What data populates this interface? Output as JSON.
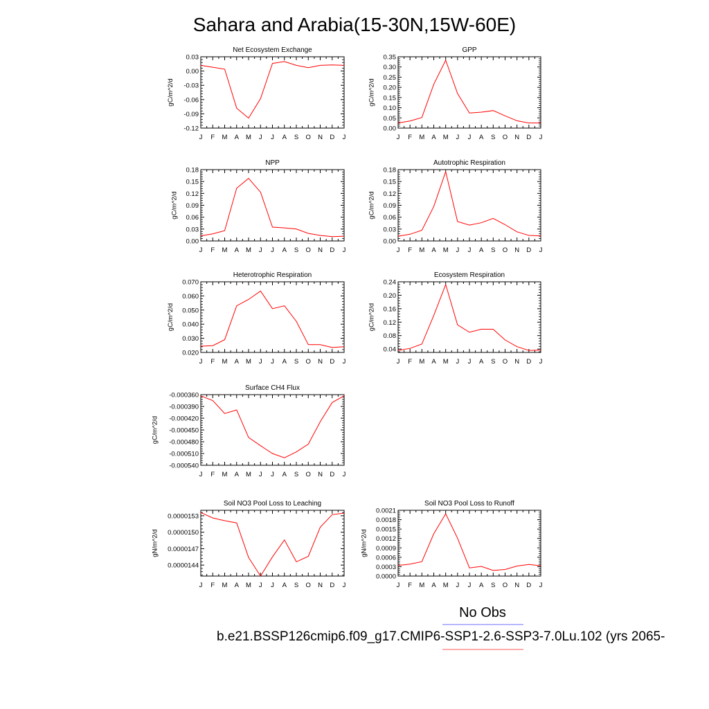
{
  "figure": {
    "title": "Sahara and Arabia(15-30N,15W-60E)",
    "legend": {
      "obs_label": "No Obs",
      "obs_color": "#8c8cff",
      "case_label": "b.e21.BSSP126cmip6.f09_g17.CMIP6-SSP1-2.6-SSP3-7.0Lu.102 (yrs 2065-",
      "case_color": "#ff7a7a"
    },
    "series_color": "#ff0000"
  },
  "chart_data": [
    {
      "type": "line",
      "title": "Net Ecosystem Exchange",
      "ylabel": "gC/m^2/d",
      "x": [
        "J",
        "F",
        "M",
        "A",
        "M",
        "J",
        "J",
        "A",
        "S",
        "O",
        "N",
        "D",
        "J"
      ],
      "ylim": [
        -0.12,
        0.03
      ],
      "yticks": [
        "0.03",
        "0.00",
        "-0.03",
        "-0.06",
        "-0.09",
        "-0.12"
      ],
      "series": [
        {
          "values": [
            0.012,
            0.008,
            0.004,
            -0.078,
            -0.099,
            -0.058,
            0.016,
            0.02,
            0.012,
            0.007,
            0.012,
            0.013,
            0.012
          ]
        }
      ]
    },
    {
      "type": "line",
      "title": "GPP",
      "ylabel": "gC/m^2/d",
      "x": [
        "J",
        "F",
        "M",
        "A",
        "M",
        "J",
        "J",
        "A",
        "S",
        "O",
        "N",
        "D",
        "J"
      ],
      "ylim": [
        0.0,
        0.35
      ],
      "yticks": [
        "0.35",
        "0.30",
        "0.25",
        "0.20",
        "0.15",
        "0.10",
        "0.05",
        "0.00"
      ],
      "series": [
        {
          "values": [
            0.025,
            0.035,
            0.052,
            0.215,
            0.333,
            0.17,
            0.074,
            0.078,
            0.086,
            0.06,
            0.036,
            0.025,
            0.025
          ]
        }
      ]
    },
    {
      "type": "line",
      "title": "NPP",
      "ylabel": "gC/m^2/d",
      "x": [
        "J",
        "F",
        "M",
        "A",
        "M",
        "J",
        "J",
        "A",
        "S",
        "O",
        "N",
        "D",
        "J"
      ],
      "ylim": [
        0.0,
        0.18
      ],
      "yticks": [
        "0.18",
        "0.15",
        "0.12",
        "0.09",
        "0.06",
        "0.03",
        "0.00"
      ],
      "series": [
        {
          "values": [
            0.013,
            0.018,
            0.026,
            0.133,
            0.158,
            0.123,
            0.035,
            0.033,
            0.03,
            0.019,
            0.014,
            0.011,
            0.012
          ]
        }
      ]
    },
    {
      "type": "line",
      "title": "Autotrophic Respiration",
      "ylabel": "gC/m^2/d",
      "x": [
        "J",
        "F",
        "M",
        "A",
        "M",
        "J",
        "J",
        "A",
        "S",
        "O",
        "N",
        "D",
        "J"
      ],
      "ylim": [
        0.0,
        0.18
      ],
      "yticks": [
        "0.18",
        "0.15",
        "0.12",
        "0.09",
        "0.06",
        "0.03",
        "0.00"
      ],
      "series": [
        {
          "values": [
            0.012,
            0.017,
            0.027,
            0.087,
            0.175,
            0.049,
            0.04,
            0.046,
            0.057,
            0.041,
            0.023,
            0.014,
            0.013
          ]
        }
      ]
    },
    {
      "type": "line",
      "title": "Heterotrophic Respiration",
      "ylabel": "gC/m^2/d",
      "x": [
        "J",
        "F",
        "M",
        "A",
        "M",
        "J",
        "J",
        "A",
        "S",
        "O",
        "N",
        "D",
        "J"
      ],
      "ylim": [
        0.02,
        0.07
      ],
      "yticks": [
        "0.070",
        "0.060",
        "0.050",
        "0.040",
        "0.030",
        "0.020"
      ],
      "series": [
        {
          "values": [
            0.0244,
            0.0248,
            0.029,
            0.053,
            0.0575,
            0.0635,
            0.051,
            0.053,
            0.042,
            0.0255,
            0.0255,
            0.0235,
            0.024
          ]
        }
      ]
    },
    {
      "type": "line",
      "title": "Ecosystem Respiration",
      "ylabel": "gC/m^2/d",
      "x": [
        "J",
        "F",
        "M",
        "A",
        "M",
        "J",
        "J",
        "A",
        "S",
        "O",
        "N",
        "D",
        "J"
      ],
      "ylim": [
        0.03,
        0.24
      ],
      "yticks": [
        "0.24",
        "0.20",
        "0.16",
        "0.12",
        "0.08",
        "0.04"
      ],
      "series": [
        {
          "values": [
            0.036,
            0.042,
            0.055,
            0.14,
            0.232,
            0.112,
            0.09,
            0.099,
            0.099,
            0.067,
            0.047,
            0.036,
            0.037
          ]
        }
      ]
    },
    {
      "type": "line",
      "title": "Surface CH4 Flux",
      "ylabel": "gC/m^2/d",
      "x": [
        "J",
        "F",
        "M",
        "A",
        "M",
        "J",
        "J",
        "A",
        "S",
        "O",
        "N",
        "D",
        "J"
      ],
      "ylim": [
        -0.00054,
        -0.00036
      ],
      "yticks": [
        "-0.000360",
        "-0.000390",
        "-0.000420",
        "-0.000450",
        "-0.000480",
        "-0.000510",
        "-0.000540"
      ],
      "series": [
        {
          "values": [
            -0.000363,
            -0.000375,
            -0.000408,
            -0.000399,
            -0.000469,
            -0.00049,
            -0.00051,
            -0.000521,
            -0.000506,
            -0.000486,
            -0.000429,
            -0.00038,
            -0.000363
          ]
        }
      ]
    },
    {
      "type": "line",
      "title": "Soil NO3 Pool Loss to Leaching",
      "ylabel": "gN/m^2/d",
      "x": [
        "J",
        "F",
        "M",
        "A",
        "M",
        "J",
        "J",
        "A",
        "S",
        "O",
        "N",
        "D",
        "J"
      ],
      "ylim": [
        1.42e-05,
        1.54e-05
      ],
      "yticks": [
        "0.0000153",
        "0.0000150",
        "0.0000147",
        "0.0000144"
      ],
      "series": [
        {
          "values": [
            1.536e-05,
            1.526e-05,
            1.521e-05,
            1.517e-05,
            1.454e-05,
            1.42e-05,
            1.455e-05,
            1.486e-05,
            1.446e-05,
            1.456e-05,
            1.509e-05,
            1.532e-05,
            1.535e-05
          ]
        }
      ]
    },
    {
      "type": "line",
      "title": "Soil NO3 Pool Loss to Runoff",
      "ylabel": "gN/m^2/d",
      "x": [
        "J",
        "F",
        "M",
        "A",
        "M",
        "J",
        "J",
        "A",
        "S",
        "O",
        "N",
        "D",
        "J"
      ],
      "ylim": [
        0.0,
        0.0021
      ],
      "yticks": [
        "0.0021",
        "0.0018",
        "0.0015",
        "0.0012",
        "0.0009",
        "0.0006",
        "0.0003",
        "0.0000"
      ],
      "series": [
        {
          "values": [
            0.00034,
            0.00038,
            0.00046,
            0.00135,
            0.00199,
            0.00121,
            0.00026,
            0.00031,
            0.00018,
            0.00021,
            0.00032,
            0.00037,
            0.00033
          ]
        }
      ]
    }
  ]
}
